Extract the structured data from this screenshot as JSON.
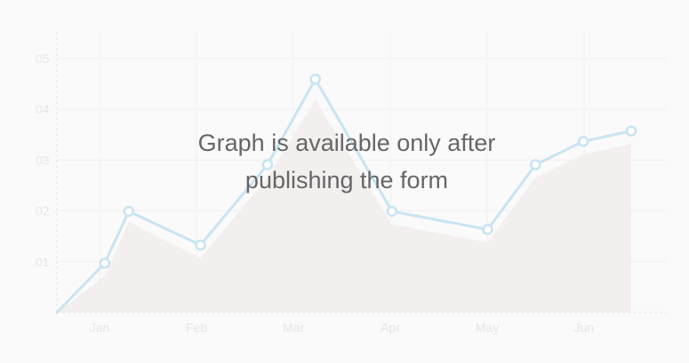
{
  "message": {
    "text": "Graph is available only after\npublishing the form"
  },
  "colors": {
    "line": "#c8e4f2",
    "area": "#f3efee",
    "axis": "#e4e4e4",
    "grid": "#f0f0f0",
    "ticks": "#e6e6e6"
  },
  "chart_data": {
    "type": "line",
    "title": "",
    "xlabel": "",
    "ylabel": "",
    "grid": true,
    "legend": "none",
    "xticks": [
      "Jan",
      "Feb",
      "Mar",
      "Apr",
      "May",
      "Jun"
    ],
    "xlim": [
      0,
      6
    ],
    "yticks": [
      "01",
      "02",
      "03",
      "04",
      "05"
    ],
    "ylim": [
      0,
      5
    ],
    "series": [
      {
        "x": [
          0,
          0.5,
          0.75,
          1.5,
          2.2,
          2.7,
          3.5,
          4.5,
          5.0,
          5.5,
          6.0
        ],
        "y": [
          0,
          0.95,
          1.95,
          1.3,
          2.85,
          4.5,
          1.95,
          1.6,
          2.85,
          3.3,
          3.5
        ],
        "markers": [
          false,
          true,
          true,
          true,
          true,
          true,
          true,
          true,
          true,
          true,
          true
        ]
      }
    ],
    "area": {
      "x": [
        0,
        0.5,
        0.75,
        1.5,
        2.2,
        2.7,
        3.5,
        4.5,
        5.0,
        5.5,
        6.0
      ],
      "y": [
        0,
        0.7,
        1.75,
        1.05,
        2.6,
        4.1,
        1.7,
        1.35,
        2.6,
        3.05,
        3.25
      ]
    }
  }
}
